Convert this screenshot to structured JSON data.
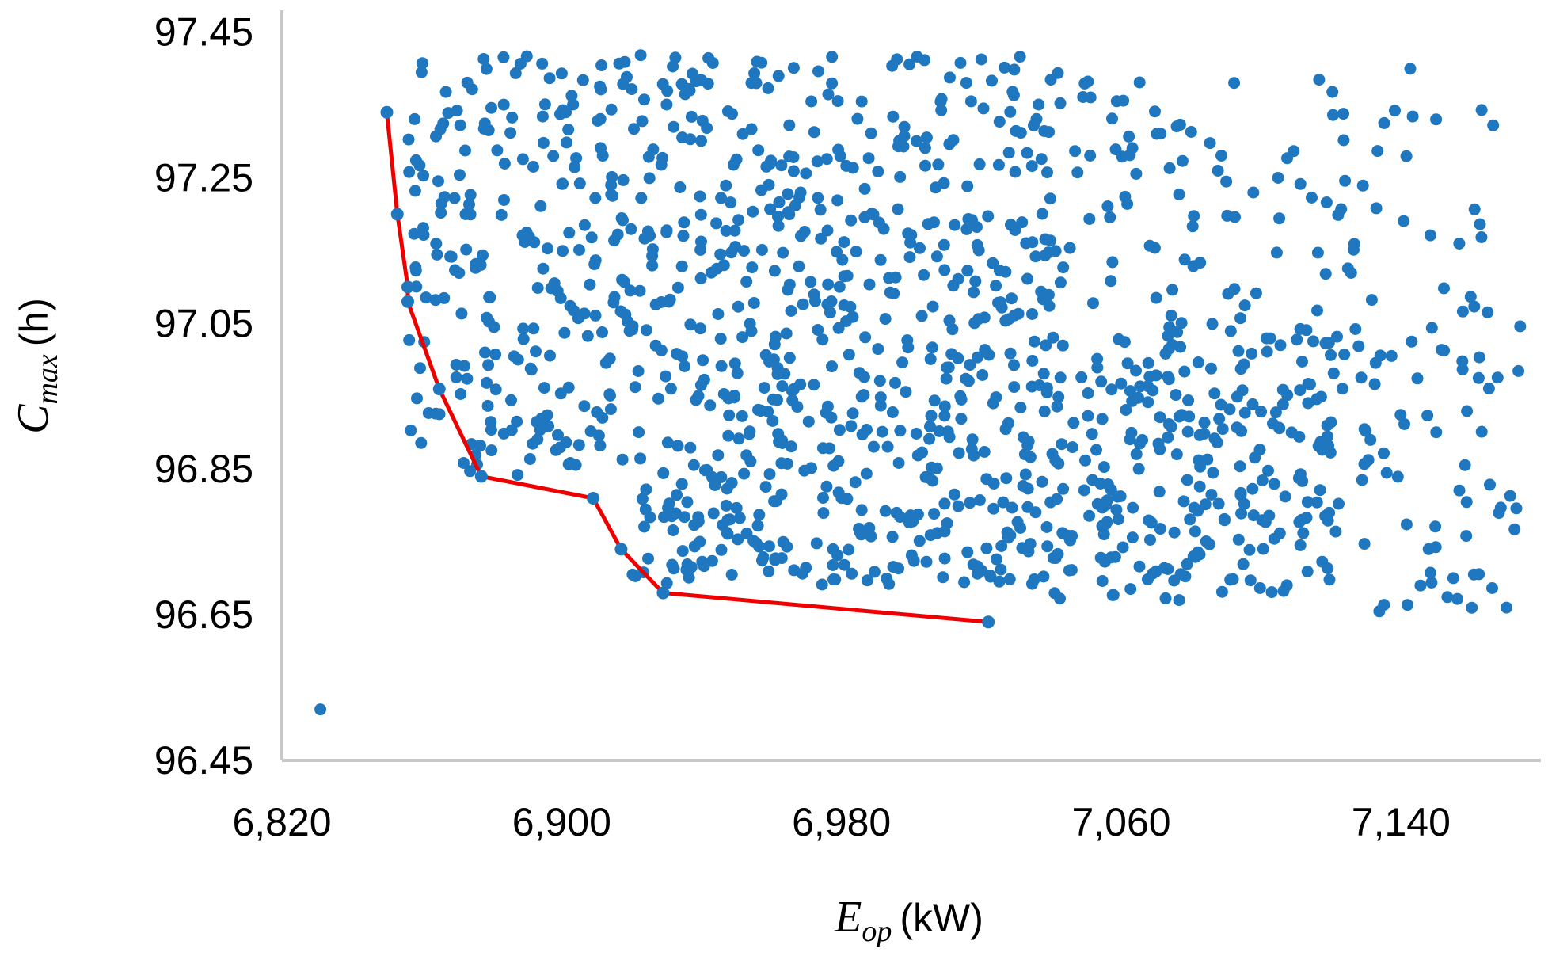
{
  "chart_data": {
    "type": "scatter",
    "xlabel": {
      "symbol": "E",
      "subscript": "op",
      "unit": "(kW)"
    },
    "ylabel": {
      "symbol": "C",
      "subscript": "max",
      "unit": "(h)"
    },
    "xlim": [
      6820,
      7180
    ],
    "ylim": [
      96.45,
      97.48
    ],
    "xticks": [
      {
        "value": 6820,
        "label": "6,820"
      },
      {
        "value": 6900,
        "label": "6,900"
      },
      {
        "value": 6980,
        "label": "6,980"
      },
      {
        "value": 7060,
        "label": "7,060"
      },
      {
        "value": 7140,
        "label": "7,140"
      }
    ],
    "yticks": [
      {
        "value": 96.45,
        "label": "96.45"
      },
      {
        "value": 96.65,
        "label": "96.65"
      },
      {
        "value": 96.85,
        "label": "96.85"
      },
      {
        "value": 97.05,
        "label": "97.05"
      },
      {
        "value": 97.25,
        "label": "97.25"
      },
      {
        "value": 97.45,
        "label": "97.45"
      }
    ],
    "grid": false,
    "legend": "none",
    "colors": {
      "points": "#1f77c0",
      "front": "#ee0000",
      "axis": "#c8c8c8"
    },
    "outlier": {
      "x": 6831,
      "y": 96.52
    },
    "pareto_front": {
      "x": [
        6850,
        6853,
        6856,
        6856,
        6865,
        6877,
        6909,
        6917,
        6929,
        7022
      ],
      "y": [
        97.34,
        97.2,
        97.1,
        97.08,
        96.96,
        96.84,
        96.81,
        96.74,
        96.68,
        96.64
      ]
    },
    "cloud_regions": [
      {
        "x": [
          6856,
          7040
        ],
        "y": [
          97.0,
          97.42
        ],
        "count": 500
      },
      {
        "x": [
          6856,
          7040
        ],
        "y": [
          96.84,
          97.0
        ],
        "count": 210
      },
      {
        "x": [
          6920,
          7040
        ],
        "y": [
          96.69,
          96.84
        ],
        "count": 170
      },
      {
        "x": [
          7040,
          7120
        ],
        "y": [
          96.67,
          97.05
        ],
        "count": 260
      },
      {
        "x": [
          7040,
          7170
        ],
        "y": [
          97.05,
          97.4
        ],
        "count": 110
      },
      {
        "x": [
          7120,
          7175
        ],
        "y": [
          96.65,
          97.05
        ],
        "count": 70
      }
    ]
  }
}
